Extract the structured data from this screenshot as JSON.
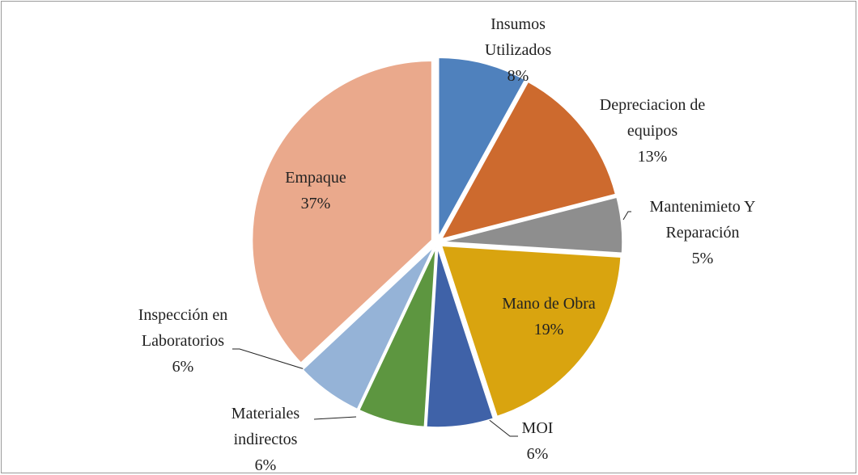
{
  "chart_data": {
    "type": "pie",
    "categories": [
      "Insumos Utilizados",
      "Depreciacion de equipos",
      "Mantenimieto Y Reparación",
      "Mano de Obra",
      "MOI",
      "Materiales indirectos",
      "Inspección en Laboratorios",
      "Empaque"
    ],
    "values": [
      8,
      13,
      5,
      19,
      6,
      6,
      6,
      37
    ],
    "value_labels": [
      "8%",
      "13%",
      "5%",
      "19%",
      "6%",
      "6%",
      "6%",
      "37%"
    ],
    "colors": [
      "#4f81bd",
      "#cd6a2e",
      "#8e8e8e",
      "#d9a40f",
      "#3f62a8",
      "#5d9640",
      "#95b3d7",
      "#eaa98c"
    ]
  }
}
